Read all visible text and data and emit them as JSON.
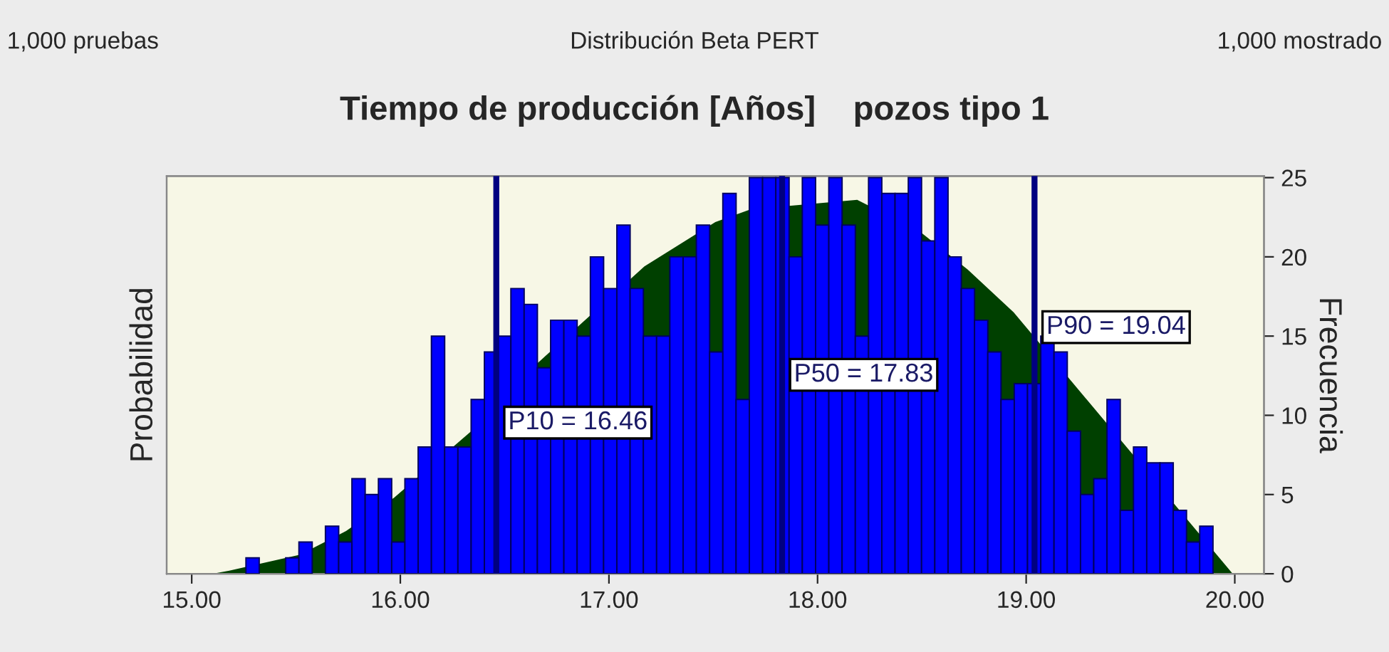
{
  "chart_data": {
    "type": "histogram",
    "title": "Tiempo de producción [Años]    pozos tipo 1",
    "ylabel": "Probabilidad",
    "y2label": "Frecuencia",
    "annotations": [
      "1,000 pruebas",
      "Distribución Beta PERT",
      "1,000 mostrado"
    ],
    "series": [
      {
        "type": "area",
        "color": "#004000",
        "axis": "y2",
        "x": [
          15.1,
          15.18,
          15.52,
          15.74,
          15.97,
          16.34,
          16.65,
          17.17,
          17.51,
          17.68,
          18.19,
          18.49,
          18.72,
          18.94,
          19.99
        ],
        "values": [
          0,
          0.2,
          1.2,
          2.7,
          4.8,
          9,
          13.2,
          19.4,
          22.2,
          23,
          23.6,
          21.6,
          19.2,
          16.5,
          0
        ]
      },
      {
        "color": "#0000ff",
        "axis": "y2",
        "bins": [
          15.26,
          15.3235,
          15.387,
          15.4505,
          15.514,
          15.5775,
          15.641,
          15.7045,
          15.768,
          15.8315,
          15.895,
          15.9585,
          16.022,
          16.0855,
          16.149,
          16.2125,
          16.276,
          16.3395,
          16.403,
          16.4665,
          16.53,
          16.5935,
          16.657,
          16.7205,
          16.784,
          16.8475,
          16.911,
          16.9745,
          17.038,
          17.1015,
          17.165,
          17.2285,
          17.292,
          17.3555,
          17.419,
          17.4825,
          17.546,
          17.6095,
          17.673,
          17.7365,
          17.8,
          17.8635,
          17.927,
          17.9905,
          18.054,
          18.1175,
          18.181,
          18.2445,
          18.308,
          18.3715,
          18.435,
          18.4985,
          18.562,
          18.6255,
          18.689,
          18.7525,
          18.816,
          18.8795,
          18.943,
          19.0065,
          19.07,
          19.1335,
          19.197,
          19.2605,
          19.324,
          19.3875,
          19.451,
          19.5145,
          19.578,
          19.6415,
          19.705,
          19.7685,
          19.832,
          19.8955
        ],
        "values": [
          1,
          0,
          0,
          1,
          2,
          0,
          3,
          2,
          6,
          5,
          6,
          2,
          6,
          8,
          15,
          8,
          8,
          11,
          14,
          15,
          18,
          17,
          13,
          16,
          16,
          15,
          20,
          18,
          22,
          18,
          15,
          15,
          20,
          20,
          22,
          14,
          24,
          11,
          25,
          25,
          25,
          20,
          25,
          22,
          25,
          22,
          15,
          25,
          24,
          24,
          25,
          21,
          25,
          20,
          18,
          16,
          14,
          11,
          12,
          12,
          15,
          14,
          9,
          5,
          6,
          11,
          4,
          8,
          7,
          7,
          4,
          2,
          3
        ]
      }
    ],
    "xlim": [
      14.88,
      20.14
    ],
    "xticks": [
      {
        "value": 15,
        "label": "15.00"
      },
      {
        "value": 16,
        "label": "16.00"
      },
      {
        "value": 17,
        "label": "17.00"
      },
      {
        "value": 18,
        "label": "18.00"
      },
      {
        "value": 19,
        "label": "19.00"
      },
      {
        "value": 20,
        "label": "20.00"
      }
    ],
    "y2lim": [
      0,
      25.1
    ],
    "y2ticks": [
      0,
      5,
      10,
      15,
      20,
      25
    ],
    "ref_lines": [
      {
        "axis": "x",
        "value": 16.46,
        "label": "P10 = 16.46",
        "color": "#000080"
      },
      {
        "axis": "x",
        "value": 17.83,
        "label": "P50 = 17.83",
        "color": "#000080"
      },
      {
        "axis": "x",
        "value": 19.04,
        "label": "P90 = 19.04",
        "color": "#000080"
      }
    ],
    "grid": false,
    "legend": false
  }
}
